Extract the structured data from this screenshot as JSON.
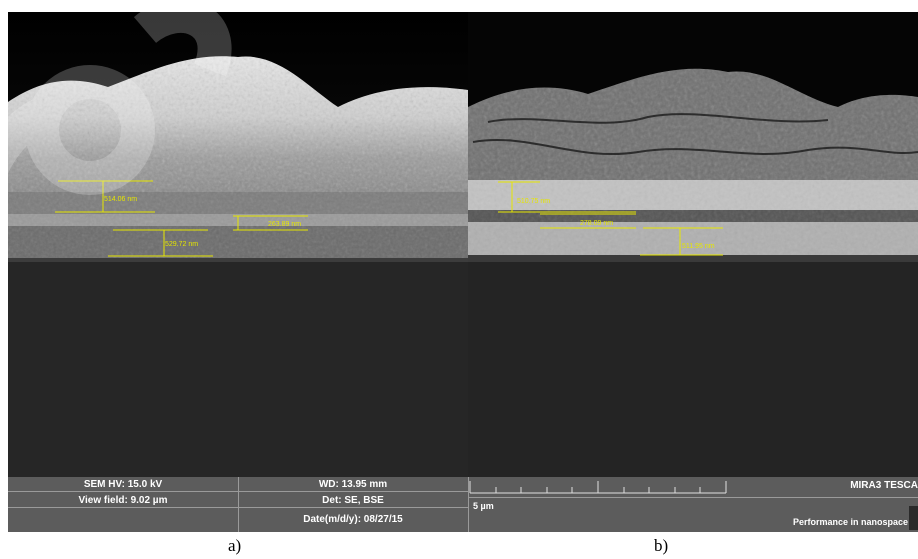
{
  "panel_a": {
    "measurements": [
      {
        "label": "514.06 nm"
      },
      {
        "label": "263.89 nm"
      },
      {
        "label": "529.72 nm"
      }
    ]
  },
  "panel_b": {
    "measurements": [
      {
        "label": "510.75 nm"
      },
      {
        "label": "278.09 nm"
      },
      {
        "label": "511.95 nm"
      }
    ]
  },
  "info_bar": {
    "hv": "SEM HV: 15.0 kV",
    "view_field": "View field: 9.02 µm",
    "wd": "WD: 13.95 mm",
    "detector": "Det: SE, BSE",
    "date": "Date(m/d/y): 08/27/15",
    "scale_label": "5 µm",
    "brand": "MIRA3 TESCA",
    "tagline": "Performance in nanospace"
  },
  "captions": {
    "a": "a)",
    "b": "b)"
  },
  "colors": {
    "measure": "#e6e600",
    "info_bg": "#5c5c5c",
    "substrate": "#252525"
  }
}
